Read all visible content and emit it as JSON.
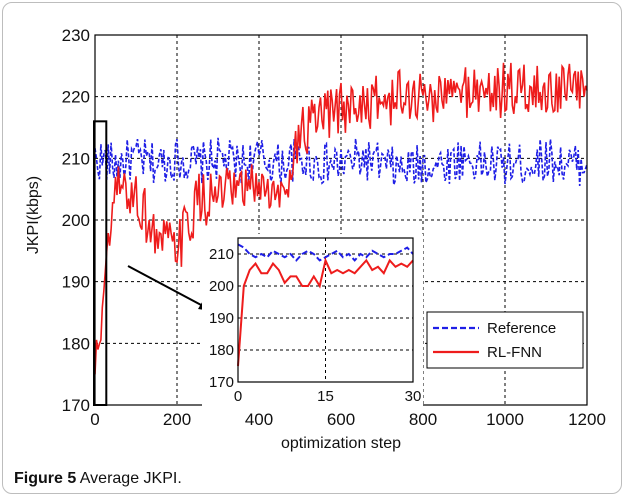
{
  "caption": {
    "label": "Figure 5",
    "text": "Average JKPI."
  },
  "chart_data": {
    "type": "line",
    "title": "",
    "xlabel": "optimization step",
    "ylabel": "JKPI(kbps)",
    "xlim": [
      0,
      1200
    ],
    "ylim": [
      170,
      230
    ],
    "xticks": [
      0,
      200,
      400,
      600,
      800,
      1000,
      1200
    ],
    "yticks": [
      170,
      180,
      190,
      200,
      210,
      220,
      230
    ],
    "grid": true,
    "legend_position": "bottom-right (inside inset)",
    "series": [
      {
        "name": "Reference",
        "color": "#1f1fe6",
        "style": "dashed",
        "x": [
          0,
          50,
          100,
          150,
          200,
          250,
          300,
          350,
          400,
          450,
          500,
          550,
          600,
          650,
          700,
          750,
          800,
          850,
          900,
          950,
          1000,
          1050,
          1100,
          1150,
          1200
        ],
        "y": [
          210,
          209,
          210,
          209,
          210,
          209,
          210,
          209,
          210,
          209,
          210,
          209,
          209,
          210,
          209,
          208,
          209,
          209,
          210,
          209,
          209,
          209,
          210,
          209,
          209
        ]
      },
      {
        "name": "RL-FNN",
        "color": "#ee1c1c",
        "style": "solid",
        "x": [
          0,
          50,
          100,
          150,
          200,
          250,
          300,
          350,
          400,
          450,
          500,
          550,
          600,
          650,
          700,
          750,
          800,
          850,
          900,
          950,
          1000,
          1050,
          1100,
          1150,
          1200
        ],
        "y": [
          175,
          205,
          204,
          197,
          195,
          203,
          204,
          204,
          206,
          203,
          214,
          216,
          218,
          219,
          219,
          220,
          220,
          220,
          221,
          221,
          221,
          221,
          221,
          221,
          221
        ]
      }
    ],
    "box_region": {
      "x": [
        0,
        30
      ],
      "y": [
        170,
        216
      ]
    },
    "inset": {
      "xlim": [
        0,
        30
      ],
      "ylim": [
        170,
        215
      ],
      "xticks": [
        0,
        15,
        30
      ],
      "yticks": [
        170,
        180,
        190,
        200,
        210
      ],
      "series": [
        {
          "name": "Reference",
          "color": "#1f1fe6",
          "style": "dashed",
          "x": [
            0,
            1,
            2,
            3,
            4,
            5,
            6,
            7,
            8,
            9,
            10,
            11,
            12,
            13,
            14,
            15,
            16,
            17,
            18,
            19,
            20,
            21,
            22,
            23,
            24,
            25,
            26,
            27,
            28,
            29,
            30
          ],
          "y": [
            213,
            212,
            210,
            209,
            210,
            209,
            211,
            210,
            209,
            210,
            208,
            210,
            211,
            210,
            208,
            209,
            210,
            211,
            209,
            210,
            208,
            210,
            209,
            211,
            210,
            209,
            210,
            210,
            211,
            212,
            210
          ]
        },
        {
          "name": "RL-FNN",
          "color": "#ee1c1c",
          "style": "solid",
          "x": [
            0,
            1,
            2,
            3,
            4,
            5,
            6,
            7,
            8,
            9,
            10,
            11,
            12,
            13,
            14,
            15,
            16,
            17,
            18,
            19,
            20,
            21,
            22,
            23,
            24,
            25,
            26,
            27,
            28,
            29,
            30
          ],
          "y": [
            175,
            200,
            205,
            207,
            204,
            204,
            207,
            205,
            201,
            203,
            203,
            200,
            200,
            203,
            200,
            208,
            204,
            205,
            204,
            205,
            204,
            206,
            208,
            205,
            206,
            204,
            208,
            206,
            207,
            206,
            208
          ]
        }
      ]
    }
  }
}
